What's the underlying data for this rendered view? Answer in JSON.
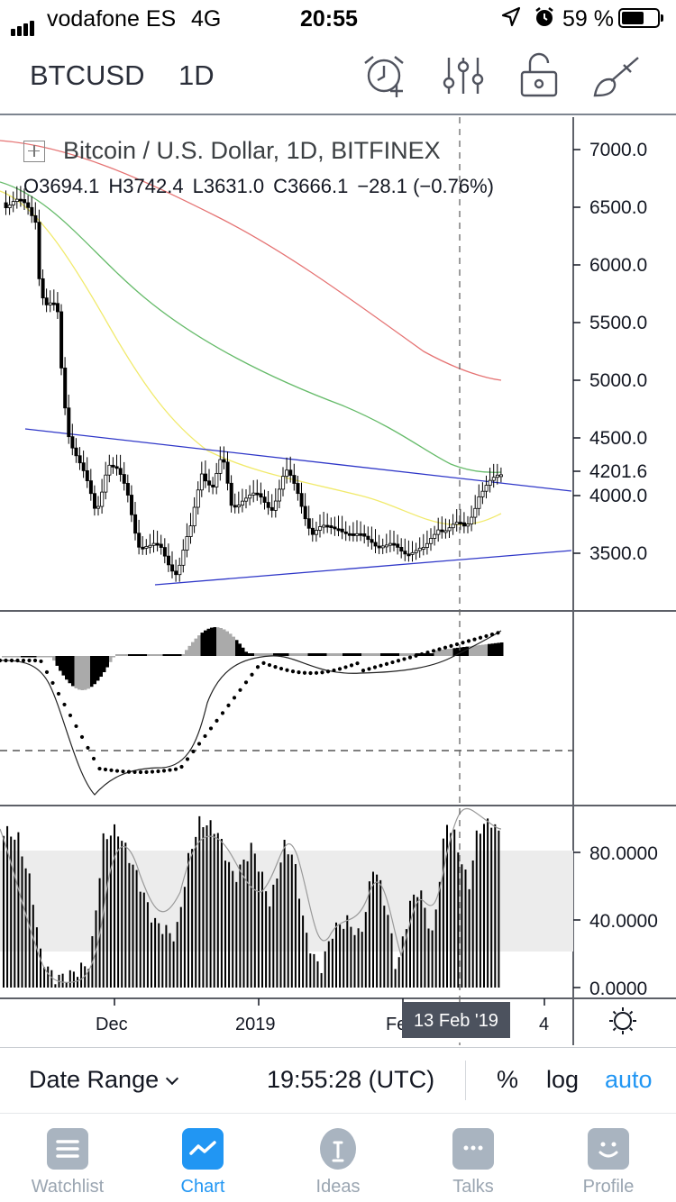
{
  "status_bar": {
    "carrier": "vodafone ES",
    "network": "4G",
    "time": "20:55",
    "battery_percent": "59 %",
    "battery_level": 0.59
  },
  "header": {
    "symbol": "BTCUSD",
    "interval": "1D",
    "buttons": [
      "alarm-clock-add-icon",
      "indicators-sliders-icon",
      "unlock-icon",
      "drawing-brush-icon"
    ]
  },
  "legend": {
    "title": "Bitcoin / U.S. Dollar, 1D, BITFINEX",
    "open": "O3694.1",
    "high": "H3742.4",
    "low": "L3631.0",
    "close": "C3666.1",
    "change": "−28.1 (−0.76%)"
  },
  "price_axis": {
    "ticks": [
      "7000.0",
      "6500.0",
      "6000.0",
      "5500.0",
      "5000.0",
      "4500.0",
      "4000.0",
      "3500.0"
    ],
    "current_price": "4201.6"
  },
  "oscillator_axis": {
    "ticks": [
      "80.0000",
      "40.0000",
      "0.0000"
    ]
  },
  "time_axis": {
    "labels": [
      "Dec",
      "2019",
      "Fe",
      "4"
    ],
    "crosshair_label": "13 Feb '19"
  },
  "controls": {
    "date_range": "Date Range",
    "time_utc": "19:55:28 (UTC)",
    "percent": "%",
    "log": "log",
    "auto": "auto"
  },
  "tabs": [
    {
      "label": "Watchlist",
      "icon": "watchlist-icon"
    },
    {
      "label": "Chart",
      "icon": "chart-icon"
    },
    {
      "label": "Ideas",
      "icon": "ideas-bulb-icon"
    },
    {
      "label": "Talks",
      "icon": "talks-chat-icon"
    },
    {
      "label": "Profile",
      "icon": "profile-smile-icon"
    }
  ],
  "active_tab": "Chart",
  "colors": {
    "accent": "#2196f3",
    "ma_red": "#e57373",
    "ma_green": "#66bb6a",
    "ma_yellow": "#f4ef7a",
    "trendline": "#2f37c8"
  }
}
